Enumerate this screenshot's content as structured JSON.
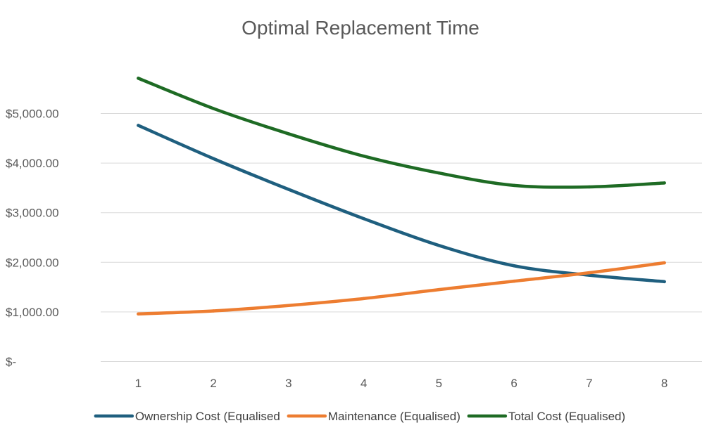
{
  "chart_data": {
    "type": "line",
    "title": "Optimal Replacement Time",
    "xlabel": "",
    "ylabel": "",
    "categories": [
      "1",
      "2",
      "3",
      "4",
      "5",
      "6",
      "7",
      "8"
    ],
    "ylim": [
      0,
      6000
    ],
    "y_ticks": [
      0,
      1000,
      2000,
      3000,
      4000,
      5000
    ],
    "y_tick_labels": [
      "$-",
      "$1,000.00",
      "$2,000.00",
      "$3,000.00",
      "$4,000.00",
      "$5,000.00"
    ],
    "grid": true,
    "legend_position": "bottom",
    "series": [
      {
        "name": "Ownership Cost (Equalised",
        "color": "#1f5f7f",
        "values": [
          4760,
          4090,
          3470,
          2880,
          2340,
          1930,
          1740,
          1610
        ]
      },
      {
        "name": "Maintenance (Equalised)",
        "color": "#ed7d31",
        "values": [
          960,
          1020,
          1130,
          1270,
          1450,
          1620,
          1790,
          1990
        ]
      },
      {
        "name": "Total Cost (Equalised)",
        "color": "#1e6b24",
        "values": [
          5710,
          5100,
          4590,
          4140,
          3800,
          3550,
          3520,
          3600
        ]
      }
    ]
  }
}
